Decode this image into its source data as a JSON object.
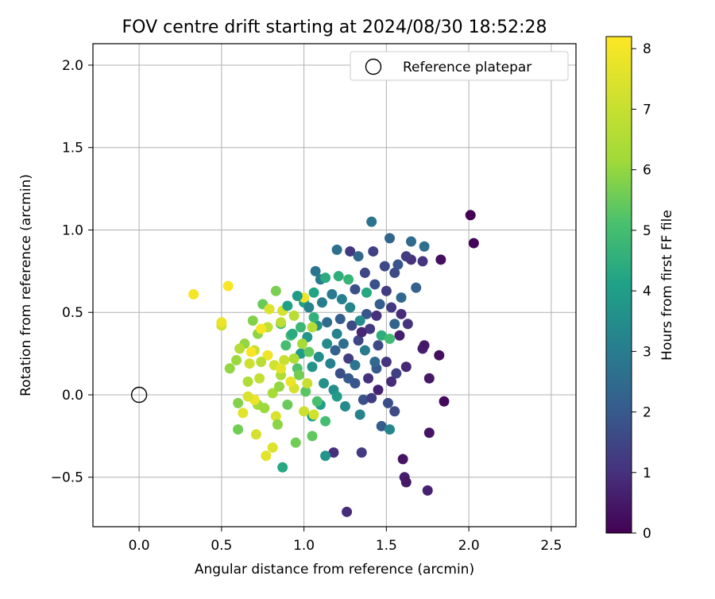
{
  "chart_data": {
    "type": "scatter",
    "title": "FOV centre drift starting at 2024/08/30 18:52:28",
    "xlabel": "Angular distance from reference (arcmin)",
    "ylabel": "Rotation from reference (arcmin)",
    "xlim": [
      -0.28,
      2.65
    ],
    "ylim": [
      -0.8,
      2.13
    ],
    "xticks": [
      0.0,
      0.5,
      1.0,
      1.5,
      2.0,
      2.5
    ],
    "yticks": [
      -0.5,
      0.0,
      0.5,
      1.0,
      1.5,
      2.0
    ],
    "grid": true,
    "legend": {
      "position": "top-right",
      "entries": [
        "Reference platepar"
      ]
    },
    "reference_point": {
      "x": 0.0,
      "y": 0.0,
      "marker": "open-circle"
    },
    "colorbar": {
      "label": "Hours from first FF file",
      "range": [
        0,
        8.2
      ],
      "ticks": [
        0,
        1,
        2,
        3,
        4,
        5,
        6,
        7,
        8
      ],
      "colormap": "viridis"
    },
    "series": [
      {
        "note_fields": "points as [x, y, hours]",
        "points": [
          [
            2.01,
            1.09,
            0.0
          ],
          [
            2.03,
            0.92,
            0.1
          ],
          [
            1.83,
            0.82,
            0.3
          ],
          [
            1.82,
            0.24,
            0.3
          ],
          [
            1.85,
            -0.04,
            0.2
          ],
          [
            1.76,
            -0.23,
            0.4
          ],
          [
            1.76,
            0.1,
            0.5
          ],
          [
            1.72,
            0.28,
            0.6
          ],
          [
            1.73,
            0.3,
            0.5
          ],
          [
            1.6,
            -0.39,
            0.4
          ],
          [
            1.61,
            -0.5,
            0.6
          ],
          [
            1.62,
            -0.53,
            0.5
          ],
          [
            1.75,
            -0.58,
            0.7
          ],
          [
            1.26,
            -0.71,
            0.9
          ],
          [
            1.35,
            -0.35,
            1.2
          ],
          [
            1.18,
            -0.35,
            1.0
          ],
          [
            1.62,
            0.17,
            0.8
          ],
          [
            1.65,
            0.82,
            1.0
          ],
          [
            1.72,
            0.81,
            1.1
          ],
          [
            1.62,
            0.84,
            1.3
          ],
          [
            1.28,
            0.87,
            1.2
          ],
          [
            1.42,
            0.87,
            1.4
          ],
          [
            1.5,
            0.63,
            1.3
          ],
          [
            1.55,
            0.74,
            1.6
          ],
          [
            1.4,
            0.4,
            1.2
          ],
          [
            1.5,
            0.2,
            1.1
          ],
          [
            1.56,
            0.13,
            1.4
          ],
          [
            1.45,
            0.3,
            1.6
          ],
          [
            1.33,
            0.33,
            1.5
          ],
          [
            1.27,
            0.22,
            1.3
          ],
          [
            1.22,
            0.13,
            1.7
          ],
          [
            1.31,
            0.07,
            1.9
          ],
          [
            1.44,
            0.16,
            2.0
          ],
          [
            1.51,
            -0.05,
            1.7
          ],
          [
            1.47,
            -0.19,
            2.1
          ],
          [
            1.55,
            -0.1,
            1.6
          ],
          [
            1.36,
            -0.03,
            1.8
          ],
          [
            1.29,
            0.42,
            1.6
          ],
          [
            1.38,
            0.49,
            1.9
          ],
          [
            1.46,
            0.55,
            2.1
          ],
          [
            1.55,
            0.43,
            2.3
          ],
          [
            1.59,
            0.59,
            2.4
          ],
          [
            1.68,
            0.65,
            2.2
          ],
          [
            1.65,
            0.93,
            2.5
          ],
          [
            1.73,
            0.9,
            2.6
          ],
          [
            1.52,
            0.95,
            2.3
          ],
          [
            1.41,
            1.05,
            2.7
          ],
          [
            1.33,
            0.84,
            2.4
          ],
          [
            1.2,
            0.88,
            2.6
          ],
          [
            1.07,
            0.75,
            2.8
          ],
          [
            1.1,
            0.7,
            3.0
          ],
          [
            1.17,
            0.61,
            2.9
          ],
          [
            1.23,
            0.58,
            3.1
          ],
          [
            1.28,
            0.53,
            3.3
          ],
          [
            1.34,
            0.45,
            3.5
          ],
          [
            1.2,
            0.37,
            3.2
          ],
          [
            1.14,
            0.31,
            3.4
          ],
          [
            1.08,
            0.42,
            3.6
          ],
          [
            1.02,
            0.35,
            3.8
          ],
          [
            0.98,
            0.25,
            3.9
          ],
          [
            1.05,
            0.17,
            3.7
          ],
          [
            1.12,
            0.07,
            3.6
          ],
          [
            1.18,
            0.03,
            3.5
          ],
          [
            1.25,
            -0.07,
            3.4
          ],
          [
            1.34,
            -0.12,
            3.2
          ],
          [
            1.52,
            -0.21,
            3.3
          ],
          [
            1.2,
            -0.01,
            3.9
          ],
          [
            1.1,
            -0.06,
            4.0
          ],
          [
            1.05,
            -0.13,
            4.1
          ],
          [
            1.13,
            -0.37,
            3.7
          ],
          [
            0.87,
            -0.44,
            4.3
          ],
          [
            1.0,
            0.56,
            4.0
          ],
          [
            1.06,
            0.62,
            4.2
          ],
          [
            1.13,
            0.71,
            4.4
          ],
          [
            1.21,
            0.72,
            4.5
          ],
          [
            1.27,
            0.7,
            4.7
          ],
          [
            1.38,
            0.62,
            4.3
          ],
          [
            1.47,
            0.36,
            4.5
          ],
          [
            1.52,
            0.34,
            4.9
          ],
          [
            1.06,
            0.47,
            4.6
          ],
          [
            0.98,
            0.41,
            4.8
          ],
          [
            0.92,
            0.36,
            4.9
          ],
          [
            0.86,
            0.43,
            5.1
          ],
          [
            0.89,
            0.3,
            5.0
          ],
          [
            0.96,
            0.16,
            5.2
          ],
          [
            1.01,
            0.02,
            5.3
          ],
          [
            1.08,
            -0.04,
            5.1
          ],
          [
            1.13,
            -0.16,
            5.0
          ],
          [
            1.05,
            -0.25,
            5.4
          ],
          [
            0.95,
            -0.29,
            5.6
          ],
          [
            0.83,
            0.63,
            5.7
          ],
          [
            0.75,
            0.55,
            5.5
          ],
          [
            0.69,
            0.45,
            5.8
          ],
          [
            0.72,
            0.37,
            5.9
          ],
          [
            0.64,
            0.31,
            6.0
          ],
          [
            0.59,
            0.21,
            6.1
          ],
          [
            0.55,
            0.16,
            6.0
          ],
          [
            0.6,
            -0.05,
            5.8
          ],
          [
            0.6,
            -0.21,
            5.6
          ],
          [
            0.72,
            -0.06,
            6.2
          ],
          [
            0.81,
            0.01,
            6.3
          ],
          [
            0.86,
            0.12,
            6.4
          ],
          [
            0.94,
            0.22,
            6.5
          ],
          [
            0.99,
            0.31,
            6.3
          ],
          [
            1.05,
            0.41,
            6.6
          ],
          [
            0.94,
            0.48,
            6.7
          ],
          [
            0.86,
            0.44,
            6.8
          ],
          [
            0.78,
            0.41,
            6.9
          ],
          [
            0.7,
            0.27,
            7.0
          ],
          [
            0.67,
            0.19,
            7.1
          ],
          [
            0.73,
            0.1,
            6.9
          ],
          [
            0.82,
            0.18,
            7.2
          ],
          [
            0.88,
            0.21,
            7.0
          ],
          [
            0.94,
            0.04,
            7.3
          ],
          [
            1.0,
            -0.1,
            7.1
          ],
          [
            0.83,
            -0.13,
            7.4
          ],
          [
            0.71,
            -0.24,
            7.3
          ],
          [
            0.81,
            -0.32,
            7.5
          ],
          [
            0.77,
            -0.37,
            7.6
          ],
          [
            0.63,
            -0.11,
            7.6
          ],
          [
            0.7,
            -0.03,
            7.8
          ],
          [
            0.79,
            0.52,
            7.5
          ],
          [
            0.87,
            0.51,
            7.3
          ],
          [
            0.5,
            0.42,
            7.2
          ],
          [
            0.5,
            0.44,
            7.8
          ],
          [
            0.33,
            0.61,
            8.0
          ],
          [
            0.54,
            0.66,
            8.1
          ],
          [
            0.74,
            0.4,
            8.0
          ],
          [
            0.78,
            0.24,
            7.9
          ],
          [
            0.68,
            0.26,
            8.1
          ],
          [
            0.86,
            0.16,
            7.7
          ],
          [
            0.92,
            0.08,
            7.8
          ],
          [
            1.0,
            0.59,
            7.9
          ],
          [
            1.02,
            0.07,
            7.0
          ],
          [
            1.06,
            -0.12,
            7.2
          ],
          [
            1.19,
            0.27,
            2.2
          ],
          [
            1.24,
            0.31,
            2.6
          ],
          [
            1.31,
            0.18,
            2.8
          ],
          [
            1.37,
            0.27,
            3.0
          ],
          [
            1.43,
            0.2,
            2.4
          ],
          [
            1.27,
            0.1,
            2.0
          ],
          [
            1.22,
            0.46,
            2.1
          ],
          [
            1.14,
            0.44,
            2.5
          ],
          [
            1.16,
            0.19,
            3.1
          ],
          [
            1.09,
            0.23,
            3.5
          ],
          [
            1.31,
            0.64,
            1.7
          ],
          [
            1.37,
            0.74,
            1.5
          ],
          [
            1.43,
            0.67,
            1.8
          ],
          [
            1.49,
            0.78,
            1.6
          ],
          [
            1.57,
            0.79,
            1.9
          ],
          [
            1.59,
            0.49,
            0.9
          ],
          [
            1.63,
            0.43,
            1.1
          ],
          [
            1.53,
            0.53,
            1.2
          ],
          [
            1.44,
            0.48,
            1.0
          ],
          [
            1.35,
            0.38,
            0.8
          ],
          [
            1.39,
            0.1,
            1.0
          ],
          [
            1.45,
            0.03,
            0.7
          ],
          [
            1.53,
            0.08,
            0.9
          ],
          [
            1.41,
            -0.02,
            1.3
          ],
          [
            1.58,
            0.36,
            0.6
          ],
          [
            0.93,
            0.37,
            4.4
          ],
          [
            0.9,
            0.54,
            4.1
          ],
          [
            0.96,
            0.6,
            3.9
          ],
          [
            1.03,
            0.53,
            3.2
          ],
          [
            1.11,
            0.56,
            3.0
          ],
          [
            0.97,
            0.12,
            5.6
          ],
          [
            1.03,
            0.26,
            5.4
          ],
          [
            0.9,
            -0.06,
            5.5
          ],
          [
            0.84,
            -0.18,
            5.9
          ],
          [
            0.76,
            -0.08,
            6.1
          ],
          [
            0.66,
            0.08,
            6.5
          ],
          [
            0.74,
            0.2,
            6.7
          ],
          [
            0.61,
            0.28,
            6.6
          ],
          [
            0.66,
            -0.01,
            7.4
          ],
          [
            0.85,
            0.05,
            6.0
          ]
        ]
      }
    ]
  }
}
